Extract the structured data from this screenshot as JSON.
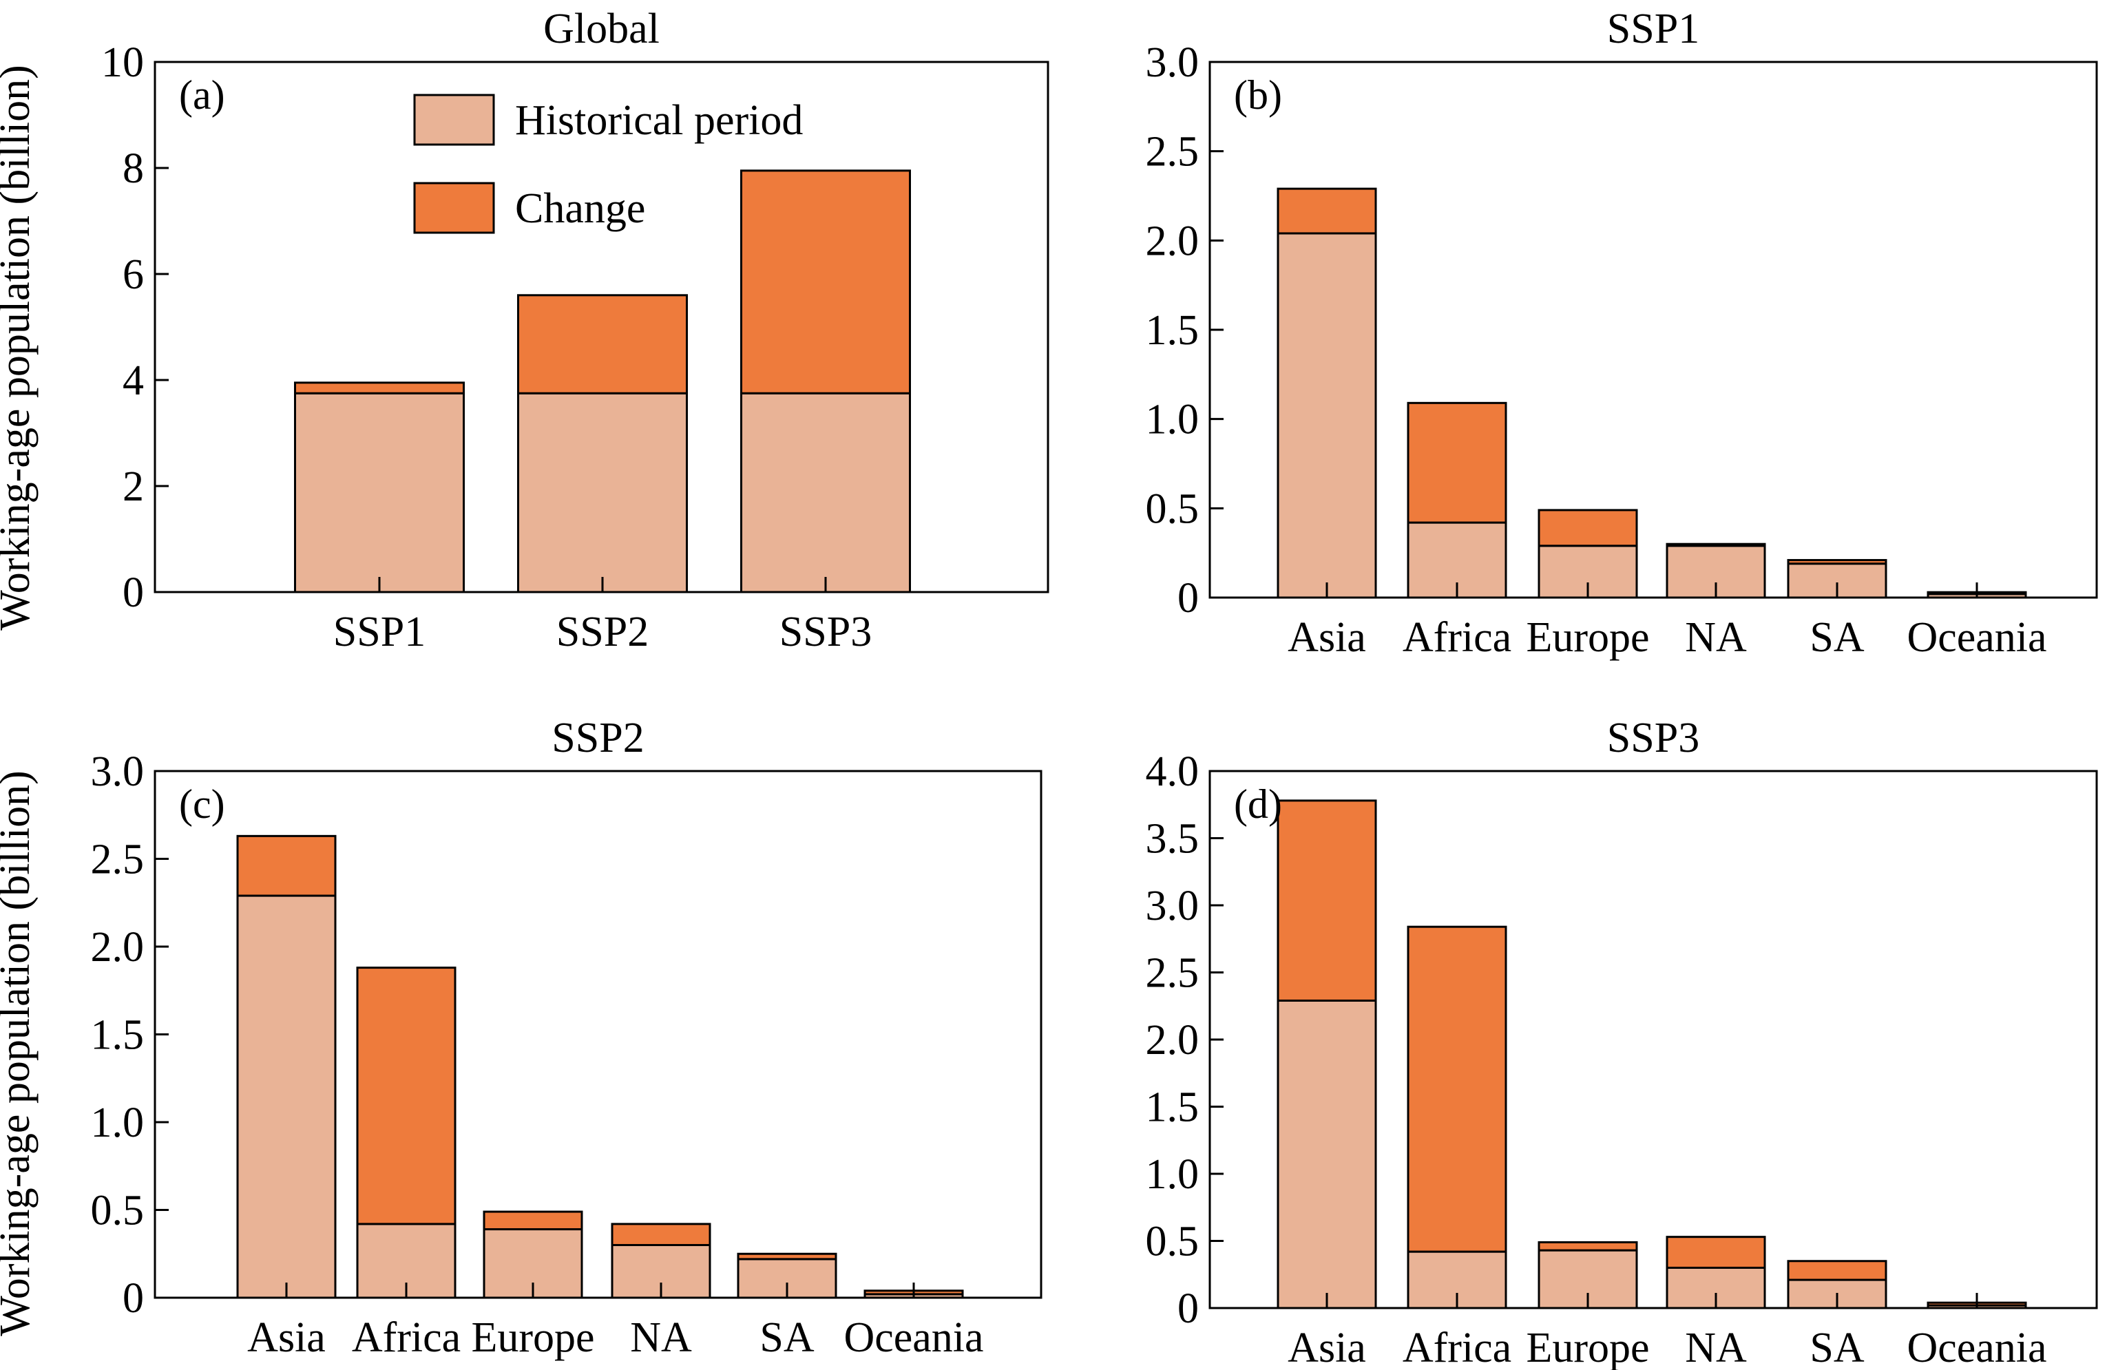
{
  "colors": {
    "historical": "#E9B396",
    "change": "#EE7B3C",
    "stroke": "#000000"
  },
  "ylabel": "Working-age population (billion)",
  "legend": {
    "historical_label": "Historical period",
    "change_label": "Change"
  },
  "chart_data": [
    {
      "type": "bar",
      "stacked": true,
      "title": "Global",
      "panel_letter": "(a)",
      "xlabel": "",
      "ylabel": "Working-age population (billion)",
      "ylim": [
        0,
        10
      ],
      "yticks": [
        0,
        2,
        4,
        6,
        8,
        10
      ],
      "ytick_labels": [
        "0",
        "2",
        "4",
        "6",
        "8",
        "10"
      ],
      "categories": [
        "SSP1",
        "SSP2",
        "SSP3"
      ],
      "series": [
        {
          "name": "Historical period",
          "values": [
            3.75,
            3.75,
            3.75
          ]
        },
        {
          "name": "Change",
          "values": [
            0.2,
            1.85,
            4.2
          ]
        }
      ],
      "legend": "top-center",
      "grid": false
    },
    {
      "type": "bar",
      "stacked": true,
      "title": "SSP1",
      "panel_letter": "(b)",
      "xlabel": "",
      "ylabel": "",
      "ylim": [
        0,
        3.0
      ],
      "yticks": [
        0,
        0.5,
        1.0,
        1.5,
        2.0,
        2.5,
        3.0
      ],
      "ytick_labels": [
        "0",
        "0.5",
        "1.0",
        "1.5",
        "2.0",
        "2.5",
        "3.0"
      ],
      "categories": [
        "Asia",
        "Africa",
        "Europe",
        "NA",
        "SA",
        "Oceania"
      ],
      "series": [
        {
          "name": "Historical period",
          "values": [
            2.04,
            0.42,
            0.29,
            0.29,
            0.19,
            0.02
          ]
        },
        {
          "name": "Change",
          "values": [
            0.25,
            0.67,
            0.2,
            0.01,
            0.02,
            0.01
          ]
        }
      ],
      "grid": false
    },
    {
      "type": "bar",
      "stacked": true,
      "title": "SSP2",
      "panel_letter": "(c)",
      "xlabel": "",
      "ylabel": "Working-age population (billion)",
      "ylim": [
        0,
        3.0
      ],
      "yticks": [
        0,
        0.5,
        1.0,
        1.5,
        2.0,
        2.5,
        3.0
      ],
      "ytick_labels": [
        "0",
        "0.5",
        "1.0",
        "1.5",
        "2.0",
        "2.5",
        "3.0"
      ],
      "categories": [
        "Asia",
        "Africa",
        "Europe",
        "NA",
        "SA",
        "Oceania"
      ],
      "series": [
        {
          "name": "Historical period",
          "values": [
            2.29,
            0.42,
            0.39,
            0.3,
            0.22,
            0.02
          ]
        },
        {
          "name": "Change",
          "values": [
            0.34,
            1.46,
            0.1,
            0.12,
            0.03,
            0.02
          ]
        }
      ],
      "grid": false
    },
    {
      "type": "bar",
      "stacked": true,
      "title": "SSP3",
      "panel_letter": "(d)",
      "xlabel": "",
      "ylabel": "",
      "ylim": [
        0,
        4.0
      ],
      "yticks": [
        0,
        0.5,
        1.0,
        1.5,
        2.0,
        2.5,
        3.0,
        3.5,
        4.0
      ],
      "ytick_labels": [
        "0",
        "0.5",
        "1.0",
        "1.5",
        "2.0",
        "2.5",
        "3.0",
        "3.5",
        "4.0"
      ],
      "categories": [
        "Asia",
        "Africa",
        "Europe",
        "NA",
        "SA",
        "Oceania"
      ],
      "series": [
        {
          "name": "Historical period",
          "values": [
            2.29,
            0.42,
            0.43,
            0.3,
            0.21,
            0.02
          ]
        },
        {
          "name": "Change",
          "values": [
            1.49,
            2.42,
            0.06,
            0.23,
            0.14,
            0.02
          ]
        }
      ],
      "grid": false
    }
  ]
}
